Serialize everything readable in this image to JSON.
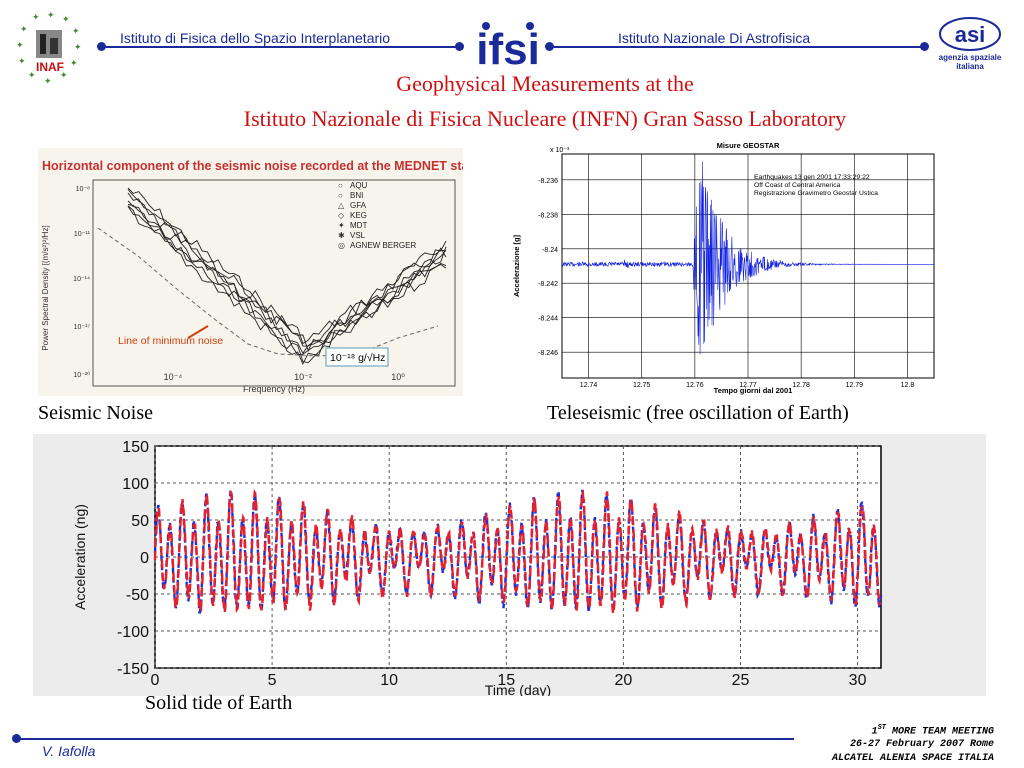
{
  "header": {
    "left_org": "Istituto di Fisica dello Spazio Interplanetario",
    "right_org": "Istituto Nazionale Di Astrofisica",
    "logo_left_text": "INAF",
    "logo_center_text": "ifsi",
    "logo_right_text": "asi",
    "logo_right_sub1": "agenzia spaziale",
    "logo_right_sub2": "italiana"
  },
  "title": {
    "line1": "Geophysical  Measurements at the",
    "line2": "Istituto Nazionale di Fisica Nucleare  (INFN)  Gran Sasso Laboratory"
  },
  "captions": {
    "seismic": "Seismic Noise",
    "teleseismic": "Teleseismic (free oscillation of Earth)",
    "tide": "Solid tide of Earth"
  },
  "footer": {
    "author": "V. Iafolla",
    "meeting_prefix": "1",
    "meeting_sup": "ST",
    "meeting_rest": " MORE TEAM MEETING",
    "dates": "26-27 February 2007 Rome",
    "company": "ALCATEL ALENIA SPACE ITALIA"
  },
  "chart_data": [
    {
      "type": "line",
      "title": "Horizontal component of the seismic noise  recorded at the  MEDNET stations",
      "xlabel": "Frequency (Hz)",
      "ylabel": "Power Spectral Density [(m/s²)²/Hz]",
      "x_tick_labels": [
        "10⁻⁴",
        "10⁻²",
        "10⁰"
      ],
      "y_tick_labels": [
        "10⁻⁸",
        "10⁻¹¹",
        "10⁻¹⁴",
        "10⁻¹⁷",
        "10⁻²⁰"
      ],
      "legend": [
        "AQU",
        "BNI",
        "GFA",
        "KEG",
        "MDT",
        "VSL",
        "AGNEW BERGER"
      ],
      "legend_placement": "top-right",
      "annotation_minimum": "Line of minimum noise",
      "annotation_level": "10⁻¹⁸ g/√Hz"
    },
    {
      "type": "line",
      "title": "Misure GEOSTAR",
      "scale_note": "x 10⁻³",
      "xlabel": "Tempo giorni dal 2001",
      "ylabel": "Accelerazione [g]",
      "x_ticks": [
        "12.74",
        "12.75",
        "12.76",
        "12.77",
        "12.78",
        "12.79",
        "12.8"
      ],
      "y_ticks": [
        "-8.236",
        "-8.238",
        "-8.24",
        "-8.242",
        "-8.244",
        "-8.246"
      ],
      "xlim": [
        12.735,
        12.805
      ],
      "ylim": [
        -8.2475,
        -8.2345
      ],
      "baseline": -8.2409,
      "annotation": [
        "Earthquakes  13 gen 2001   17:33:29:22",
        "Off Coast of Central America",
        "Registrazione Gravimetro Geostar Ustica"
      ],
      "grid": true
    },
    {
      "type": "line",
      "xlabel": "Time (day)",
      "ylabel": "Acceleration (ng)",
      "x_ticks": [
        0,
        5,
        10,
        15,
        20,
        25,
        30
      ],
      "y_ticks": [
        150,
        100,
        50,
        0,
        -50,
        -100,
        -150
      ],
      "xlim": [
        0,
        31
      ],
      "ylim": [
        -150,
        150
      ],
      "grid": true,
      "series_colors": [
        "#e8202a",
        "#2030d8"
      ]
    }
  ]
}
